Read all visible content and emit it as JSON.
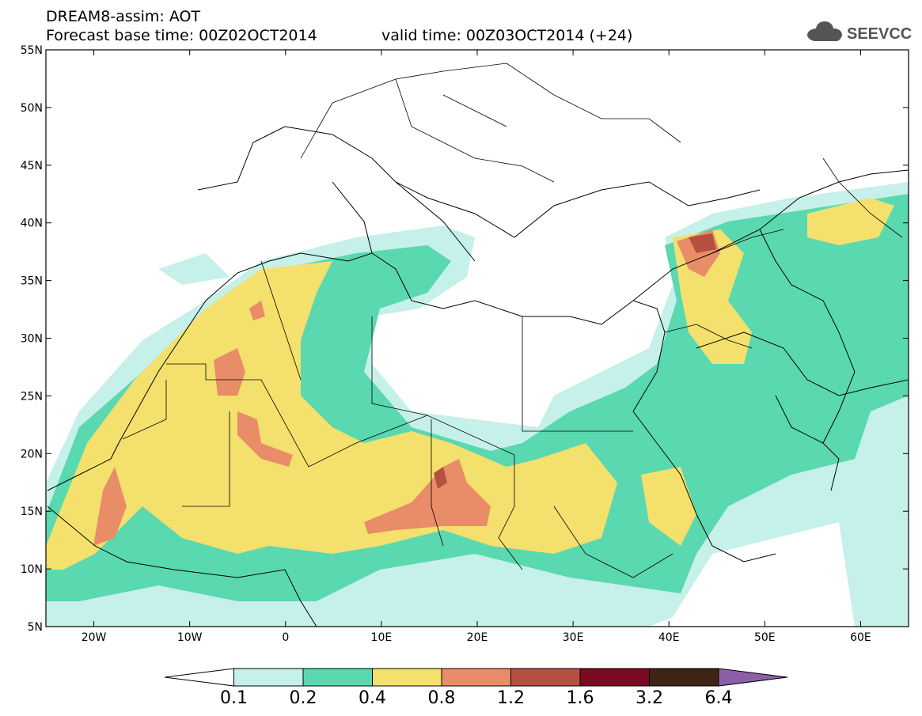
{
  "header": {
    "title_line1": "DREAM8-assim: AOT",
    "title_line2": "Forecast base time: 00Z02OCT2014",
    "valid_time": "valid time: 00Z03OCT2014 (+24)",
    "logo_text": "SEEVCCC"
  },
  "map": {
    "lat_labels": [
      "55N",
      "50N",
      "45N",
      "40N",
      "35N",
      "30N",
      "25N",
      "20N",
      "15N",
      "10N",
      "5N"
    ],
    "lon_labels": [
      "20W",
      "10W",
      "0",
      "10E",
      "20E",
      "30E",
      "40E",
      "50E",
      "60E"
    ],
    "lon_range": [
      -25,
      65
    ],
    "lat_range": [
      5,
      55
    ],
    "variable": "AOT"
  },
  "colorbar": {
    "labels": [
      "0.1",
      "0.2",
      "0.4",
      "0.8",
      "1.2",
      "1.6",
      "3.2",
      "6.4"
    ],
    "colors": [
      "#ffffff",
      "#c6f0ea",
      "#5ad8b0",
      "#f4e06c",
      "#e98c68",
      "#b55040",
      "#7a0a24",
      "#3e2414",
      "#8c60a8"
    ]
  }
}
